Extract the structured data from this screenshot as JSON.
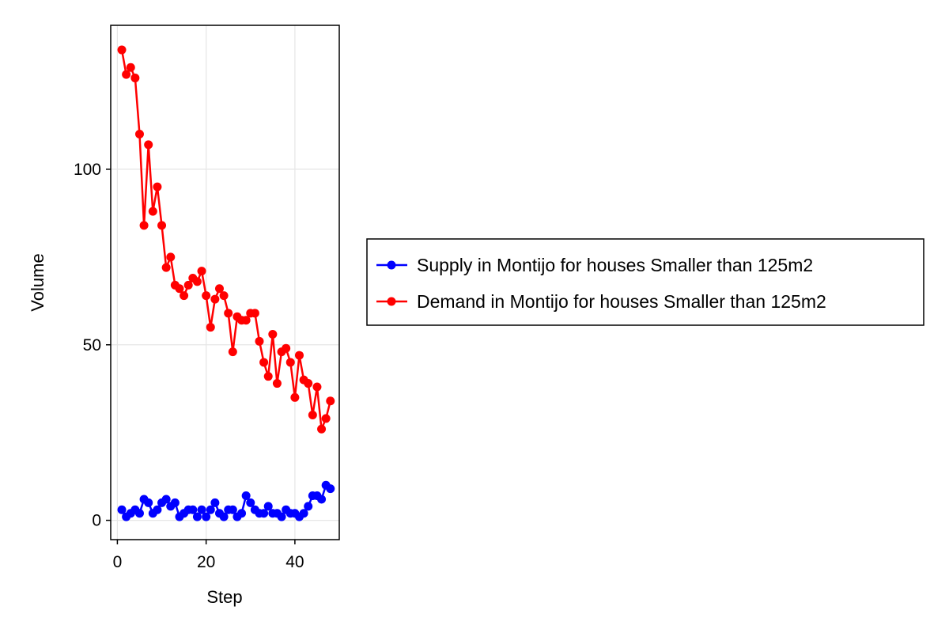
{
  "chart_data": {
    "type": "line",
    "title": "",
    "xlabel": "Step",
    "ylabel": "Volume",
    "xlim": [
      -1.5,
      50
    ],
    "ylim": [
      -5.5,
      141
    ],
    "xticks": [
      0,
      20,
      40
    ],
    "yticks": [
      0,
      50,
      100
    ],
    "grid": true,
    "legend_position": "right",
    "x": [
      1,
      2,
      3,
      4,
      5,
      6,
      7,
      8,
      9,
      10,
      11,
      12,
      13,
      14,
      15,
      16,
      17,
      18,
      19,
      20,
      21,
      22,
      23,
      24,
      25,
      26,
      27,
      28,
      29,
      30,
      31,
      32,
      33,
      34,
      35,
      36,
      37,
      38,
      39,
      40,
      41,
      42,
      43,
      44,
      45,
      46,
      47,
      48
    ],
    "series": [
      {
        "name": "Supply in Montijo for houses Smaller than 125m2",
        "color": "#0000ff",
        "values": [
          3,
          1,
          2,
          3,
          2,
          6,
          5,
          2,
          3,
          5,
          6,
          4,
          5,
          1,
          2,
          3,
          3,
          1,
          3,
          1,
          3,
          5,
          2,
          1,
          3,
          3,
          1,
          2,
          7,
          5,
          3,
          2,
          2,
          4,
          2,
          2,
          1,
          3,
          2,
          2,
          1,
          2,
          4,
          7,
          7,
          6,
          10,
          9
        ]
      },
      {
        "name": "Demand in Montijo for houses Smaller than 125m2",
        "color": "#ff0000",
        "values": [
          134,
          127,
          129,
          126,
          110,
          84,
          107,
          88,
          95,
          84,
          72,
          75,
          67,
          66,
          64,
          67,
          69,
          68,
          71,
          64,
          55,
          63,
          66,
          64,
          59,
          48,
          58,
          57,
          57,
          59,
          59,
          51,
          45,
          41,
          53,
          39,
          48,
          49,
          45,
          35,
          47,
          40,
          39,
          30,
          38,
          26,
          29,
          34
        ]
      }
    ]
  }
}
